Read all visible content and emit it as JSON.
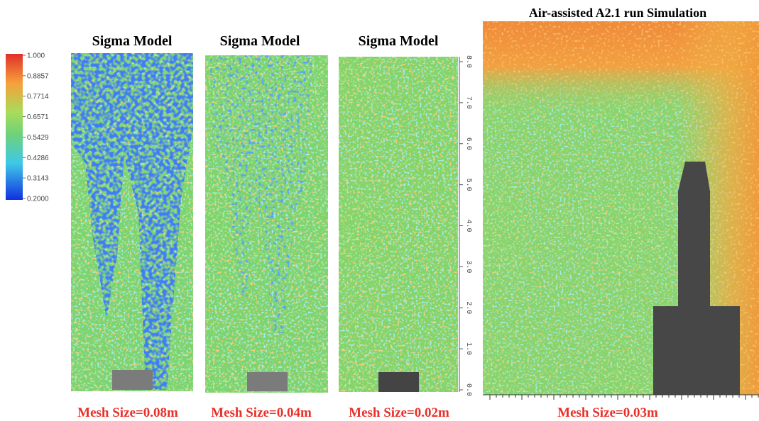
{
  "colorbar": {
    "ticks": [
      "1.000",
      "0.8857",
      "0.7714",
      "0.6571",
      "0.5429",
      "0.4286",
      "0.3143",
      "0.2000"
    ]
  },
  "panels": [
    {
      "title": "Sigma Model",
      "mesh_label": "Mesh Size=0.08m"
    },
    {
      "title": "Sigma Model",
      "mesh_label": "Mesh Size=0.04m"
    },
    {
      "title": "Sigma Model",
      "mesh_label": "Mesh Size=0.02m"
    },
    {
      "title": "Air-assisted A2.1 run Simulation",
      "mesh_label": "Mesh Size=0.03m"
    }
  ],
  "axis": {
    "ticks": [
      "0.0",
      "1.0",
      "2.0",
      "3.0",
      "4.0",
      "5.0",
      "6.0",
      "7.0",
      "8.0"
    ]
  }
}
